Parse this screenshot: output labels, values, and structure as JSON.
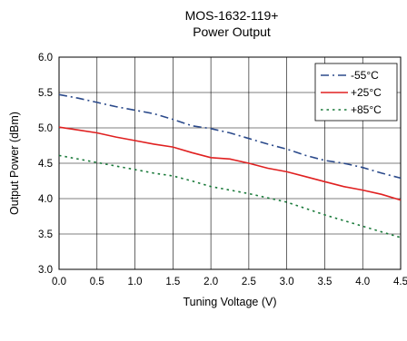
{
  "chart_data": {
    "type": "line",
    "title": "MOS-1632-119+",
    "subtitle": "Power Output",
    "xlabel": "Tuning Voltage (V)",
    "ylabel": "Output Power (dBm)",
    "xlim": [
      0,
      4.5
    ],
    "ylim": [
      3.0,
      6.0
    ],
    "xticks": [
      "0.0",
      "0.5",
      "1.0",
      "1.5",
      "2.0",
      "2.5",
      "3.0",
      "3.5",
      "4.0",
      "4.5"
    ],
    "yticks": [
      "3.0",
      "3.5",
      "4.0",
      "4.5",
      "5.0",
      "5.5",
      "6.0"
    ],
    "grid": true,
    "legend_position": "top-right",
    "series": [
      {
        "name": "-55°C",
        "color": "#2b4a8b",
        "dash": "dash-dot",
        "x": [
          0,
          0.25,
          0.5,
          0.75,
          1.0,
          1.25,
          1.5,
          1.75,
          2.0,
          2.25,
          2.5,
          2.75,
          3.0,
          3.25,
          3.5,
          3.75,
          4.0,
          4.25,
          4.5
        ],
        "y": [
          5.47,
          5.42,
          5.36,
          5.3,
          5.25,
          5.2,
          5.12,
          5.03,
          4.99,
          4.93,
          4.85,
          4.77,
          4.7,
          4.61,
          4.54,
          4.5,
          4.44,
          4.36,
          4.29
        ]
      },
      {
        "name": "+25°C",
        "color": "#e02020",
        "dash": "solid",
        "x": [
          0,
          0.25,
          0.5,
          0.75,
          1.0,
          1.25,
          1.5,
          1.75,
          2.0,
          2.25,
          2.5,
          2.75,
          3.0,
          3.25,
          3.5,
          3.75,
          4.0,
          4.25,
          4.5
        ],
        "y": [
          5.01,
          4.97,
          4.93,
          4.87,
          4.82,
          4.77,
          4.73,
          4.65,
          4.58,
          4.56,
          4.5,
          4.43,
          4.38,
          4.31,
          4.24,
          4.17,
          4.12,
          4.06,
          3.98
        ]
      },
      {
        "name": "+85°C",
        "color": "#1a7a3a",
        "dash": "dotted",
        "x": [
          0,
          0.25,
          0.5,
          0.75,
          1.0,
          1.25,
          1.5,
          1.75,
          2.0,
          2.25,
          2.5,
          2.75,
          3.0,
          3.25,
          3.5,
          3.75,
          4.0,
          4.25,
          4.5
        ],
        "y": [
          4.61,
          4.56,
          4.51,
          4.46,
          4.41,
          4.36,
          4.32,
          4.25,
          4.17,
          4.12,
          4.07,
          4.01,
          3.95,
          3.86,
          3.77,
          3.69,
          3.61,
          3.53,
          3.45
        ]
      }
    ]
  }
}
